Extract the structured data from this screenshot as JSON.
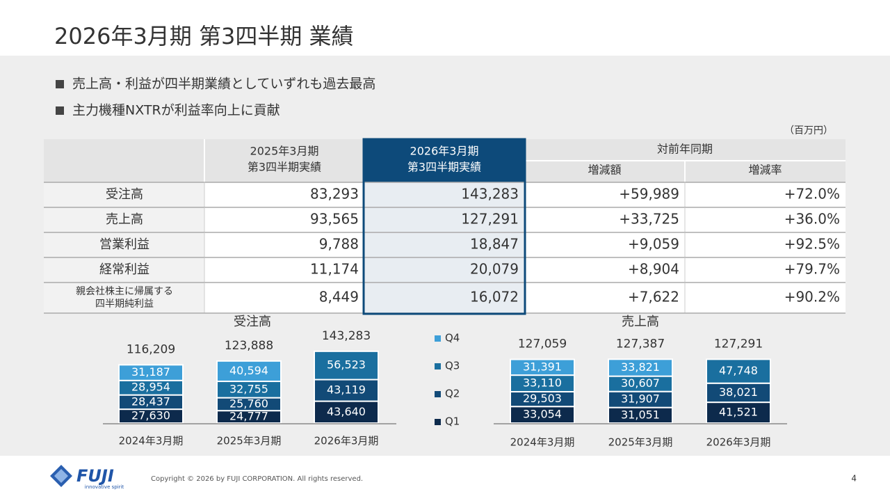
{
  "header": {
    "title": "2026年3月期 第3四半期 業績"
  },
  "bullets": [
    "売上高・利益が四半期業績としていずれも過去最高",
    "主力機種NXTRが利益率向上に貢献"
  ],
  "unit": "（百万円）",
  "table": {
    "columns": [
      [
        "2025年3月期",
        "第3四半期実績"
      ],
      [
        "2026年3月期",
        "第3四半期実績"
      ]
    ],
    "group": "対前年同期",
    "subcolumns": [
      "増減額",
      "増減率"
    ],
    "rows": [
      {
        "label": [
          "受注高"
        ],
        "cells": [
          "83,293",
          "143,283",
          "+59,989",
          "+72.0%"
        ]
      },
      {
        "label": [
          "売上高"
        ],
        "cells": [
          "93,565",
          "127,291",
          "+33,725",
          "+36.0%"
        ]
      },
      {
        "label": [
          "営業利益"
        ],
        "cells": [
          "9,788",
          "18,847",
          "+9,059",
          "+92.5%"
        ]
      },
      {
        "label": [
          "経常利益"
        ],
        "cells": [
          "11,174",
          "20,079",
          "+8,904",
          "+79.7%"
        ]
      },
      {
        "label": [
          "親会社株主に帰属する",
          "四半期純利益"
        ],
        "cells": [
          "8,449",
          "16,072",
          "+7,622",
          "+90.2%"
        ]
      }
    ]
  },
  "charts": [
    {
      "type": "bar",
      "stacked": true,
      "title": "受注高",
      "categories": [
        "2024年3月期",
        "2025年3月期",
        "2026年3月期"
      ],
      "series": [
        {
          "name": "Q1",
          "color": "#0d2a4c",
          "values": [
            27630,
            24777,
            43640
          ],
          "value_labels": [
            "27,630",
            "24,777",
            "43,640"
          ]
        },
        {
          "name": "Q2",
          "color": "#124a77",
          "values": [
            28437,
            25760,
            43119
          ],
          "value_labels": [
            "28,437",
            "25,760",
            "43,119"
          ]
        },
        {
          "name": "Q3",
          "color": "#1a6f9f",
          "values": [
            28954,
            32755,
            56523
          ],
          "value_labels": [
            "28,954",
            "32,755",
            "56,523"
          ]
        },
        {
          "name": "Q4",
          "color": "#3d9fd8",
          "values": [
            31187,
            40594,
            null
          ],
          "value_labels": [
            "31,187",
            "40,594",
            null
          ]
        }
      ],
      "totals": [
        116209,
        123888,
        143283
      ],
      "total_labels": [
        "116,209",
        "123,888",
        "143,283"
      ]
    },
    {
      "type": "bar",
      "stacked": true,
      "title": "売上高",
      "categories": [
        "2024年3月期",
        "2025年3月期",
        "2026年3月期"
      ],
      "series": [
        {
          "name": "Q1",
          "color": "#0d2a4c",
          "values": [
            33054,
            31051,
            41521
          ],
          "value_labels": [
            "33,054",
            "31,051",
            "41,521"
          ]
        },
        {
          "name": "Q2",
          "color": "#124a77",
          "values": [
            29503,
            31907,
            38021
          ],
          "value_labels": [
            "29,503",
            "31,907",
            "38,021"
          ]
        },
        {
          "name": "Q3",
          "color": "#1a6f9f",
          "values": [
            33110,
            30607,
            47748
          ],
          "value_labels": [
            "33,110",
            "30,607",
            "47,748"
          ]
        },
        {
          "name": "Q4",
          "color": "#3d9fd8",
          "values": [
            31391,
            33821,
            null
          ],
          "value_labels": [
            "31,391",
            "33,821",
            null
          ]
        }
      ],
      "totals": [
        127059,
        127387,
        127291
      ],
      "total_labels": [
        "127,059",
        "127,387",
        "127,291"
      ]
    }
  ],
  "footer": {
    "logo": "FUJI",
    "tagline": "innovative spirit",
    "copyright": "Copyright © 2026 by FUJI CORPORATION. All rights reserved.",
    "page": "4"
  }
}
